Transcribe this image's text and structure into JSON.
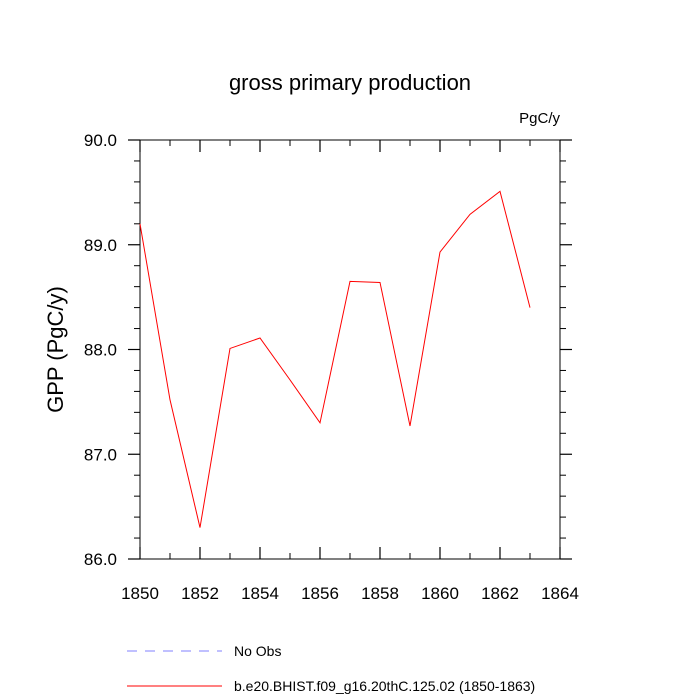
{
  "chart_data": {
    "type": "line",
    "title": "gross primary production",
    "units_label": "PgC/y",
    "ylabel": "GPP  (PgC/y)",
    "xlabel": "",
    "xlim": [
      1850,
      1864
    ],
    "ylim": [
      86.0,
      90.0
    ],
    "x_ticks": [
      1850,
      1852,
      1854,
      1856,
      1858,
      1860,
      1862,
      1864
    ],
    "x_tick_labels": [
      "1850",
      "1852",
      "1854",
      "1856",
      "1858",
      "1860",
      "1862",
      "1864"
    ],
    "y_ticks": [
      86.0,
      87.0,
      88.0,
      89.0,
      90.0
    ],
    "y_tick_labels": [
      "86.0",
      "87.0",
      "88.0",
      "89.0",
      "90.0"
    ],
    "grid": false,
    "legend_position": "bottom",
    "series": [
      {
        "name": "b.e20.BHIST.f09_g16.20thC.125.02 (1850-1863)",
        "color": "#ff0000",
        "dash": "solid",
        "x": [
          1850,
          1851,
          1852,
          1853,
          1854,
          1855,
          1856,
          1857,
          1858,
          1859,
          1860,
          1861,
          1862,
          1863
        ],
        "y": [
          89.2,
          87.52,
          86.3,
          88.01,
          88.11,
          87.71,
          87.3,
          88.65,
          88.64,
          87.27,
          88.93,
          89.29,
          89.51,
          88.4
        ]
      }
    ],
    "legend": [
      {
        "label": "No Obs",
        "color": "#8080ff",
        "dash": "dashed"
      },
      {
        "label": "b.e20.BHIST.f09_g16.20thC.125.02 (1850-1863)",
        "color": "#ff0000",
        "dash": "solid"
      }
    ]
  }
}
